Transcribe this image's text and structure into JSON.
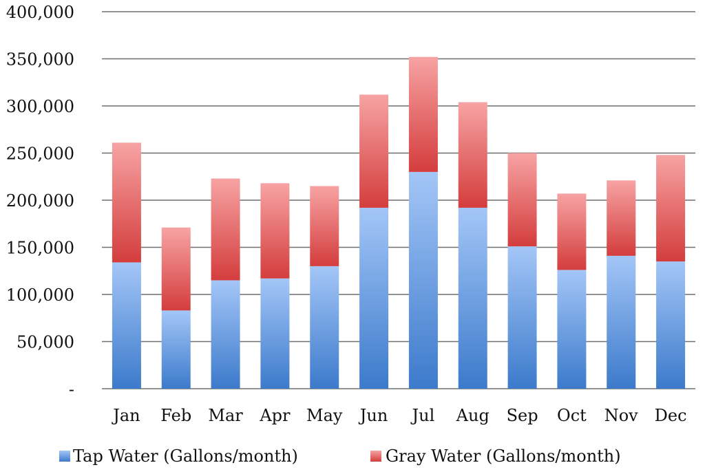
{
  "chart_data": {
    "type": "bar",
    "stacked": true,
    "title": "",
    "xlabel": "",
    "ylabel": "",
    "ylim": [
      0,
      400000
    ],
    "y_ticks": [
      {
        "value": 0,
        "label": "-"
      },
      {
        "value": 50000,
        "label": "50,000"
      },
      {
        "value": 100000,
        "label": "100,000"
      },
      {
        "value": 150000,
        "label": "150,000"
      },
      {
        "value": 200000,
        "label": "200,000"
      },
      {
        "value": 250000,
        "label": "250,000"
      },
      {
        "value": 300000,
        "label": "300,000"
      },
      {
        "value": 350000,
        "label": "350,000"
      },
      {
        "value": 400000,
        "label": "400,000"
      }
    ],
    "grid": true,
    "legend_position": "bottom",
    "categories": [
      "Jan",
      "Feb",
      "Mar",
      "Apr",
      "May",
      "Jun",
      "Jul",
      "Aug",
      "Sep",
      "Oct",
      "Nov",
      "Dec"
    ],
    "series": [
      {
        "name": "Tap Water (Gallons/month)",
        "color": "#4a86d4",
        "values": [
          134000,
          83000,
          115000,
          117000,
          130000,
          192000,
          230000,
          192000,
          151000,
          126000,
          141000,
          135000
        ]
      },
      {
        "name": "Gray Water (Gallons/month)",
        "color": "#d94848",
        "values": [
          127000,
          88000,
          108000,
          101000,
          85000,
          120000,
          122000,
          112000,
          99000,
          81000,
          80000,
          113000
        ]
      }
    ]
  }
}
